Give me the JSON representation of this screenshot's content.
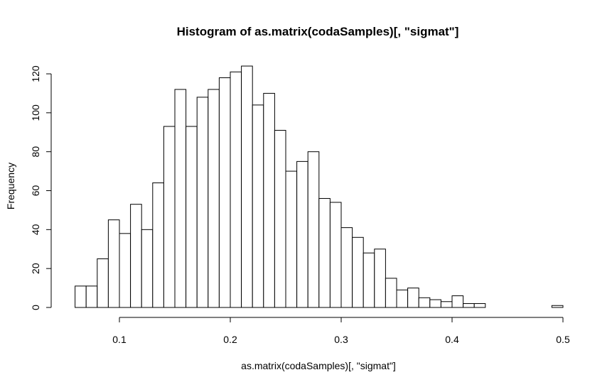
{
  "chart_data": {
    "type": "bar",
    "title": "Histogram of as.matrix(codaSamples)[, \"sigmat\"]",
    "xlabel": "as.matrix(codaSamples)[, \"sigmat\"]",
    "ylabel": "Frequency",
    "x_ticks": [
      "0.1",
      "0.2",
      "0.3",
      "0.4",
      "0.5"
    ],
    "y_ticks": [
      "0",
      "20",
      "40",
      "60",
      "80",
      "100",
      "120"
    ],
    "xlim": [
      0.1,
      0.5
    ],
    "ylim": [
      0,
      120
    ],
    "bin_start": 0.06,
    "bin_width": 0.01,
    "values": [
      11,
      11,
      25,
      45,
      38,
      53,
      40,
      64,
      93,
      112,
      93,
      108,
      112,
      118,
      121,
      124,
      104,
      110,
      91,
      70,
      75,
      80,
      56,
      54,
      41,
      36,
      28,
      30,
      15,
      9,
      10,
      5,
      4,
      3,
      6,
      2,
      2,
      0,
      0,
      0,
      0,
      0,
      0,
      1
    ]
  }
}
